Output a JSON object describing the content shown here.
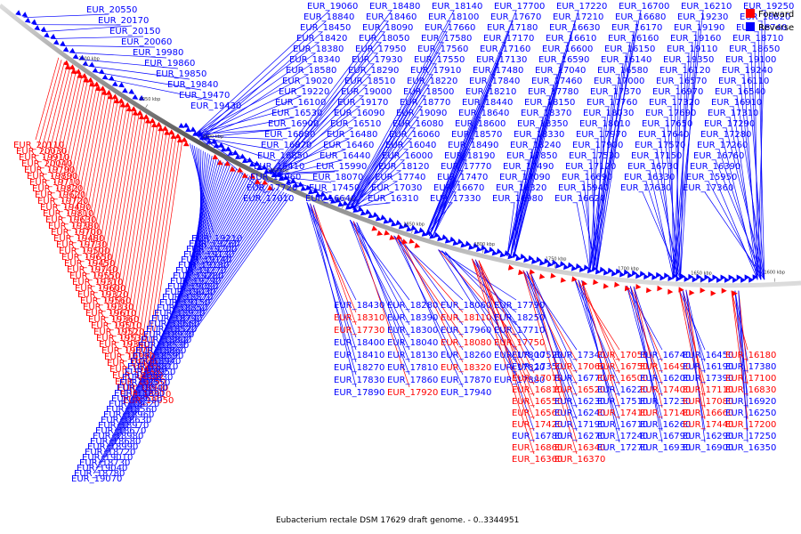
{
  "caption": "Eubacterium rectale DSM 17629 draft genome. - 0..3344951",
  "legend": [
    {
      "label": "Forward",
      "color": "#ff0000"
    },
    {
      "label": "Reverse",
      "color": "#0000ff"
    }
  ],
  "colors": {
    "forward": "#ff0000",
    "reverse": "#0000ff",
    "backbone": "#777777"
  },
  "ticks": [
    "2100 kbp",
    "2050 kbp",
    "2000 kbp",
    "1950 kbp",
    "1900 kbp",
    "1850 kbp",
    "1800 kbp",
    "1750 kbp",
    "1700 kbp",
    "1650 kbp",
    "1600 kbp"
  ],
  "labels": {
    "left_reverse": [
      "EUR_20550",
      "EUR_20170",
      "EUR_20150",
      "EUR_20060",
      "EUR_19980",
      "EUR_19860",
      "EUR_19850",
      "EUR_19840",
      "EUR_19470",
      "EUR_19430"
    ],
    "left_forward": [
      "EUR_20110",
      "EUR_20030",
      "EUR_19910",
      "EUR_20040",
      "EUR_19790",
      "EUR_19890",
      "EUR_19710",
      "EUR_19820",
      "EUR_19620",
      "EUR_19720",
      "EUR_19490",
      "EUR_19810",
      "EUR_19630",
      "EUR_19380",
      "EUR_19700",
      "EUR_19480",
      "EUR_19730",
      "EUR_19500",
      "EUR_19650",
      "EUR_19450",
      "EUR_19740",
      "EUR_19550",
      "EUR_19310",
      "EUR_19600",
      "EUR_19320",
      "EUR_19560",
      "EUR_19330",
      "EUR_19610",
      "EUR_19360",
      "EUR_19510",
      "EUR_19520",
      "EUR_19530",
      "EUR_19340",
      "EUR_19370",
      "EUR_19390",
      "EUR_19400",
      "EUR_19410",
      "EUR_18890",
      "EUR_18750",
      "EUR_18900",
      "EUR_18910",
      "EUR_19050"
    ],
    "left_lower_reverse": [
      "EUR_19210",
      "EUR_19260",
      "EUR_19200",
      "EUR_19130",
      "EUR_19140",
      "EUR_19180",
      "EUR_19270",
      "EUR_19280",
      "EUR_19290",
      "EUR_19080",
      "EUR_19030",
      "EUR_18870",
      "EUR_19150",
      "EUR_18850",
      "EUR_18920",
      "EUR_18790",
      "EUR_18660",
      "EUR_18520",
      "EUR_18930",
      "EUR_18800",
      "EUR_18530",
      "EUR_18860",
      "EUR_18590",
      "EUR_18940",
      "EUR_18810",
      "EUR_18950",
      "EUR_18830",
      "EUR_18550",
      "EUR_18540",
      "EUR_18880",
      "EUR_18610",
      "EUR_18620",
      "EUR_18560",
      "EUR_18960",
      "EUR_18630",
      "EUR_18970",
      "EUR_18670",
      "EUR_18980",
      "EUR_18680",
      "EUR_18990",
      "EUR_18720",
      "EUR_19010",
      "EUR_18730",
      "EUR_19040",
      "EUR_18780",
      "EUR_19070"
    ],
    "top_reverse": [
      "EUR_19060",
      "EUR_18480",
      "EUR_18140",
      "EUR_17700",
      "EUR_17220",
      "EUR_16700",
      "EUR_16210",
      "EUR_19250",
      "EUR_18840",
      "EUR_18460",
      "EUR_18100",
      "EUR_17670",
      "EUR_17210",
      "EUR_16680",
      "EUR_19230",
      "EUR_18820",
      "EUR_18450",
      "EUR_18090",
      "EUR_17660",
      "EUR_17180",
      "EUR_16630",
      "EUR_16170",
      "EUR_19190",
      "EUR_18740",
      "EUR_18420",
      "EUR_18050",
      "EUR_17580",
      "EUR_17170",
      "EUR_16610",
      "EUR_16160",
      "EUR_19160",
      "EUR_18710",
      "EUR_18380",
      "EUR_17950",
      "EUR_17560",
      "EUR_17160",
      "EUR_16600",
      "EUR_16150",
      "EUR_19110",
      "EUR_18650",
      "EUR_18340",
      "EUR_17930",
      "EUR_17550",
      "EUR_17130",
      "EUR_16590",
      "EUR_16140",
      "EUR_19350",
      "EUR_19100",
      "EUR_18580",
      "EUR_18290",
      "EUR_17910",
      "EUR_17480",
      "EUR_17040",
      "EUR_16580",
      "EUR_16120",
      "EUR_19240",
      "EUR_19020",
      "EUR_18510",
      "EUR_18220",
      "EUR_17840",
      "EUR_17460",
      "EUR_17000",
      "EUR_16570",
      "EUR_16110",
      "EUR_19220",
      "EUR_19000",
      "EUR_18500",
      "EUR_18210",
      "EUR_17780",
      "EUR_17370",
      "EUR_16970",
      "EUR_16540",
      "EUR_16100",
      "EUR_19170",
      "EUR_18770",
      "EUR_18440",
      "EUR_18150",
      "EUR_17760",
      "EUR_17320",
      "EUR_16910",
      "EUR_16530",
      "EUR_16090",
      "EUR_19090",
      "EUR_18640",
      "EUR_18370",
      "EUR_18030",
      "EUR_17690",
      "EUR_17310",
      "EUR_16900",
      "EUR_16510",
      "EUR_16080",
      "EUR_18600",
      "EUR_18350",
      "EUR_18010",
      "EUR_17650",
      "EUR_17290",
      "EUR_16880",
      "EUR_16480",
      "EUR_16060",
      "EUR_18570",
      "EUR_18330",
      "EUR_17970",
      "EUR_17640",
      "EUR_17280",
      "EUR_16870",
      "EUR_16460",
      "EUR_16040",
      "EUR_18490",
      "EUR_18240",
      "EUR_17900",
      "EUR_17570",
      "EUR_17260",
      "EUR_16850",
      "EUR_16440",
      "EUR_16000",
      "EUR_18190",
      "EUR_17850",
      "EUR_17530",
      "EUR_17150",
      "EUR_16760",
      "EUR_16410",
      "EUR_15990",
      "EUR_18120",
      "EUR_17770",
      "EUR_17490",
      "EUR_17120",
      "EUR_16730",
      "EUR_16390",
      "EUR_15960",
      "EUR_18070",
      "EUR_17740",
      "EUR_17470",
      "EUR_17090",
      "EUR_16690",
      "EUR_16330",
      "EUR_15950",
      "EUR_17720",
      "EUR_17450",
      "EUR_17030",
      "EUR_16670",
      "EUR_16320",
      "EUR_15940",
      "EUR_17630",
      "EUR_17360",
      "EUR_17010",
      "EUR_16640",
      "EUR_16310",
      "EUR_17330",
      "EUR_16980",
      "EUR_16620"
    ],
    "mid_lower": [
      "EUR_18430",
      "EUR_18280",
      "EUR_18060",
      "EUR_17790",
      "EUR_18310",
      "EUR_18390",
      "EUR_18110",
      "EUR_18250",
      "EUR_17730",
      "EUR_18300",
      "EUR_17960",
      "EUR_17710",
      "EUR_18400",
      "EUR_18040",
      "EUR_18080",
      "EUR_17750",
      "EUR_18410",
      "EUR_18130",
      "EUR_18260",
      "EUR_17800",
      "EUR_18270",
      "EUR_17810",
      "EUR_18320",
      "EUR_17820",
      "EUR_17830",
      "EUR_17860",
      "EUR_17870",
      "EUR_17880",
      "EUR_17890",
      "EUR_17920",
      "EUR_17940"
    ],
    "right_lower": [
      "EUR_17520",
      "EUR_17340",
      "EUR_17050",
      "EUR_16740",
      "EUR_16450",
      "EUR_16180",
      "EUR_17350",
      "EUR_17060",
      "EUR_16750",
      "EUR_16490",
      "EUR_16190",
      "EUR_17380",
      "EUR_17070",
      "EUR_16770",
      "EUR_16500",
      "EUR_16200",
      "EUR_17390",
      "EUR_17100",
      "EUR_16810",
      "EUR_16520",
      "EUR_16220",
      "EUR_17400",
      "EUR_17110",
      "EUR_16830",
      "EUR_16550",
      "EUR_16230",
      "EUR_17510",
      "EUR_17230",
      "EUR_17080",
      "EUR_16920",
      "EUR_16560",
      "EUR_16240",
      "EUR_17410",
      "EUR_17140",
      "EUR_16660",
      "EUR_16250",
      "EUR_17420",
      "EUR_17190",
      "EUR_16710",
      "EUR_16260",
      "EUR_17440",
      "EUR_17200",
      "EUR_16780",
      "EUR_16270",
      "EUR_17240",
      "EUR_16790",
      "EUR_16290",
      "EUR_17250",
      "EUR_16860",
      "EUR_16340",
      "EUR_17270",
      "EUR_16930",
      "EUR_16900",
      "EUR_16350",
      "EUR_16360",
      "EUR_16370"
    ]
  }
}
